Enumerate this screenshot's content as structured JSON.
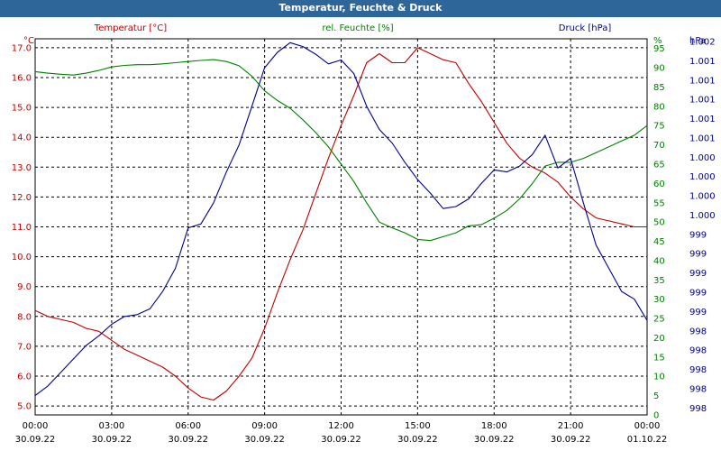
{
  "window": {
    "title": "Temperatur, Feuchte & Druck"
  },
  "chart_data": {
    "type": "line",
    "title": "Temperatur, Feuchte & Druck",
    "grid": true,
    "x_ticks": [
      {
        "t": "00:00",
        "d": "30.09.22"
      },
      {
        "t": "03:00",
        "d": "30.09.22"
      },
      {
        "t": "06:00",
        "d": "30.09.22"
      },
      {
        "t": "09:00",
        "d": "30.09.22"
      },
      {
        "t": "12:00",
        "d": "30.09.22"
      },
      {
        "t": "15:00",
        "d": "30.09.22"
      },
      {
        "t": "18:00",
        "d": "30.09.22"
      },
      {
        "t": "21:00",
        "d": "30.09.22"
      },
      {
        "t": "00:00",
        "d": "01.10.22"
      }
    ],
    "x_hours_range": [
      0,
      24
    ],
    "axes": {
      "temperature": {
        "label": "Temperatur [°C]",
        "unit": "°C",
        "color": "#c00000",
        "ylim": [
          4.7,
          17.3
        ],
        "ticks": [
          "5.0",
          "6.0",
          "7.0",
          "8.0",
          "9.0",
          "10.0",
          "11.0",
          "12.0",
          "13.0",
          "14.0",
          "15.0",
          "16.0",
          "17.0"
        ]
      },
      "humidity": {
        "label": "rel. Feuchte [%]",
        "unit": "%",
        "color": "#008000",
        "ylim": [
          0,
          97.5
        ],
        "ticks": [
          "0",
          "5",
          "10",
          "15",
          "20",
          "25",
          "30",
          "35",
          "40",
          "45",
          "50",
          "55",
          "60",
          "65",
          "70",
          "75",
          "80",
          "85",
          "90",
          "95"
        ]
      },
      "pressure": {
        "label": "Druck [hPa]",
        "unit": "hPa",
        "color": "#00008b",
        "ticks": [
          "998",
          "998",
          "998",
          "998",
          "998",
          "999",
          "999",
          "999",
          "999",
          "999",
          "1.000",
          "1.000",
          "1.000",
          "1.000",
          "1.001",
          "1.001",
          "1.001",
          "1.001",
          "1.001",
          "1.002"
        ]
      }
    },
    "series": [
      {
        "name": "Temperatur [°C]",
        "axis": "temperature",
        "color": "#c00000",
        "x": [
          0,
          0.5,
          1,
          1.5,
          2,
          2.5,
          3,
          3.5,
          4,
          4.5,
          5,
          5.5,
          6,
          6.5,
          7,
          7.5,
          8,
          8.5,
          9,
          9.5,
          10,
          10.5,
          11,
          11.5,
          12,
          12.5,
          13,
          13.5,
          14,
          14.5,
          15,
          15.5,
          16,
          16.5,
          17,
          17.5,
          18,
          18.5,
          19,
          19.5,
          20,
          20.5,
          21,
          21.5,
          22,
          22.5,
          23,
          23.5,
          24
        ],
        "y": [
          8.2,
          8.0,
          7.9,
          7.8,
          7.6,
          7.5,
          7.2,
          6.9,
          6.7,
          6.5,
          6.3,
          6.0,
          5.6,
          5.3,
          5.2,
          5.5,
          6.0,
          6.6,
          7.6,
          8.8,
          9.9,
          10.9,
          12.1,
          13.3,
          14.4,
          15.4,
          16.5,
          16.8,
          16.5,
          16.5,
          17.0,
          16.8,
          16.6,
          16.5,
          15.8,
          15.2,
          14.5,
          13.8,
          13.3,
          13.0,
          12.8,
          12.5,
          12.0,
          11.6,
          11.3,
          11.2,
          11.1,
          11.0,
          11.0
        ]
      },
      {
        "name": "rel. Feuchte [%]",
        "axis": "humidity",
        "color": "#008000",
        "x": [
          0,
          0.5,
          1,
          1.5,
          2,
          2.5,
          3,
          3.5,
          4,
          4.5,
          5,
          5.5,
          6,
          6.5,
          7,
          7.5,
          8,
          8.5,
          9,
          9.5,
          10,
          10.5,
          11,
          11.5,
          12,
          12.5,
          13,
          13.5,
          14,
          14.5,
          15,
          15.5,
          16,
          16.5,
          17,
          17.5,
          18,
          18.5,
          19,
          19.5,
          20,
          20.5,
          21,
          21.5,
          22,
          22.5,
          23,
          23.5,
          24
        ],
        "y": [
          89.0,
          88.6,
          88.3,
          88.1,
          88.6,
          89.3,
          90.2,
          90.6,
          90.8,
          90.8,
          91.0,
          91.3,
          91.6,
          91.9,
          92.1,
          91.6,
          90.5,
          87.8,
          84.0,
          81.5,
          79.5,
          76.5,
          73.2,
          69.5,
          65.0,
          60.5,
          55.0,
          50.0,
          48.5,
          47.2,
          45.5,
          45.2,
          46.2,
          47.2,
          49.0,
          49.3,
          51.0,
          53.0,
          56.0,
          60.0,
          64.5,
          65.5,
          65.5,
          66.5,
          68.0,
          69.5,
          71.0,
          72.5,
          75.0
        ]
      },
      {
        "name": "Druck [hPa]",
        "axis": "pressure",
        "color": "#00008b",
        "x": [
          0,
          0.5,
          1,
          1.5,
          2,
          2.5,
          3,
          3.5,
          4,
          4.5,
          5,
          5.5,
          6,
          6.5,
          7,
          7.5,
          8,
          8.5,
          9,
          9.5,
          10,
          10.5,
          11,
          11.5,
          12,
          12.5,
          13,
          13.5,
          14,
          14.5,
          15,
          15.5,
          16,
          16.5,
          17,
          17.5,
          18,
          18.5,
          19,
          19.5,
          20,
          20.5,
          21,
          21.5,
          22,
          22.5,
          23,
          23.5,
          24
        ],
        "y": [
          5.0,
          7.5,
          11.0,
          14.5,
          18.0,
          20.5,
          23.5,
          25.5,
          26.0,
          27.5,
          32.0,
          38.0,
          48.5,
          49.5,
          55.0,
          63.0,
          70.0,
          80.0,
          90.0,
          94.0,
          96.5,
          95.5,
          93.5,
          91.0,
          92.0,
          88.5,
          80.0,
          74.0,
          70.5,
          65.5,
          61.0,
          57.5,
          53.5,
          54.0,
          56.0,
          60.0,
          63.5,
          63.0,
          64.5,
          67.5,
          72.5,
          64.0,
          66.5,
          55.0,
          44.0,
          38.0,
          32.0,
          30.0,
          24.5
        ]
      }
    ]
  }
}
